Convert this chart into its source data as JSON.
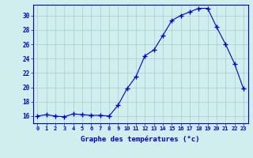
{
  "hours": [
    0,
    1,
    2,
    3,
    4,
    5,
    6,
    7,
    8,
    9,
    10,
    11,
    12,
    13,
    14,
    15,
    16,
    17,
    18,
    19,
    20,
    21,
    22,
    23
  ],
  "temps": [
    16.0,
    16.2,
    16.0,
    15.9,
    16.3,
    16.2,
    16.1,
    16.1,
    16.0,
    17.5,
    19.8,
    21.5,
    24.4,
    25.2,
    27.2,
    29.3,
    30.0,
    30.5,
    31.0,
    31.0,
    28.4,
    26.0,
    23.3,
    19.8
  ],
  "line_color": "#0000cc",
  "marker": "+",
  "marker_size": 4,
  "bg_color": "#d0eeee",
  "grid_color": "#aacccc",
  "xlabel": "Graphe des températures (°c)",
  "xlabel_color": "#0000cc",
  "tick_color": "#0000cc",
  "ylim": [
    15.0,
    31.5
  ],
  "xlim": [
    -0.5,
    23.5
  ],
  "yticks": [
    16,
    18,
    20,
    22,
    24,
    26,
    28,
    30
  ],
  "xtick_labels": [
    "0",
    "1",
    "2",
    "3",
    "4",
    "5",
    "6",
    "7",
    "8",
    "9",
    "10",
    "11",
    "12",
    "13",
    "14",
    "15",
    "16",
    "17",
    "18",
    "19",
    "20",
    "21",
    "22",
    "23"
  ]
}
